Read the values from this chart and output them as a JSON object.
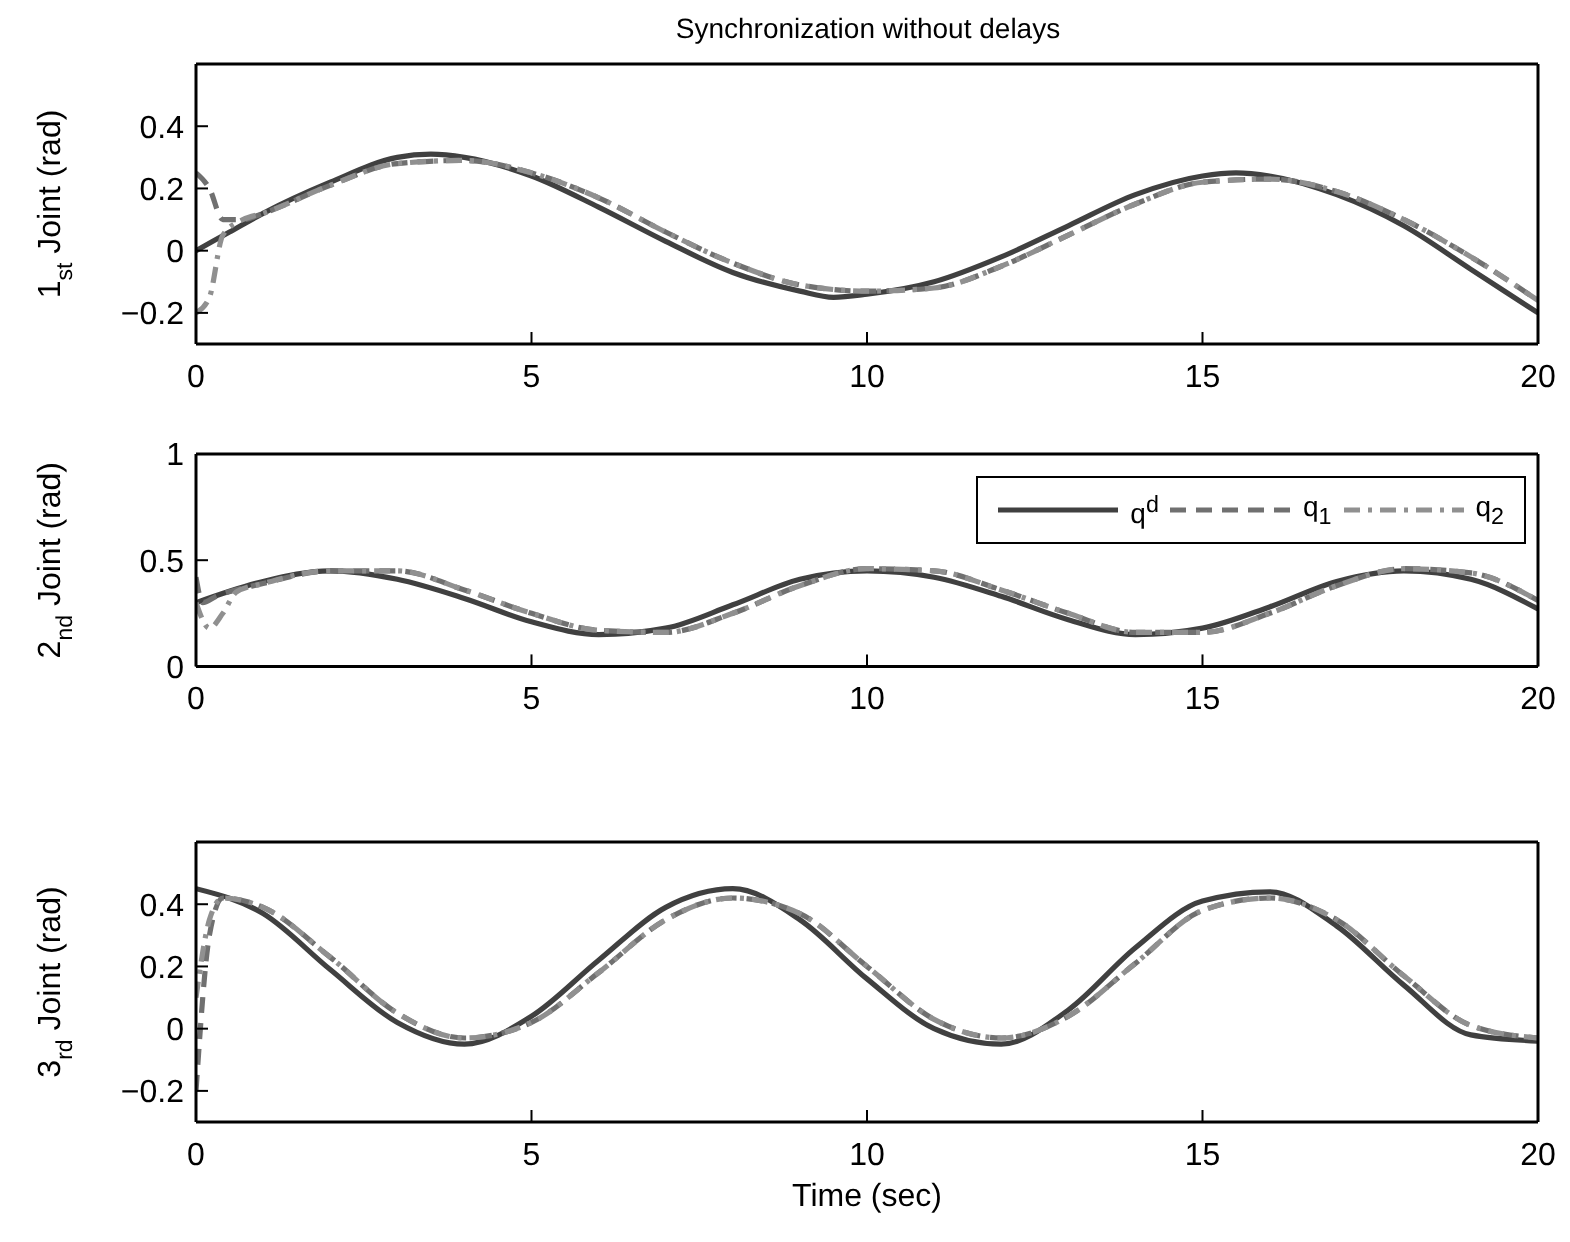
{
  "chart_data": [
    {
      "type": "line",
      "title": "Synchronization without delays",
      "ylabel": "1$_{st}$ Joint (rad)",
      "xlim": [
        0,
        20
      ],
      "xticks": [
        0,
        5,
        10,
        15,
        20
      ],
      "ylim": [
        -0.3,
        0.6
      ],
      "yticks": [
        -0.2,
        0,
        0.2,
        0.4
      ],
      "grid": false,
      "legend": false,
      "series": [
        {
          "color": "#404040",
          "line_style": "solid",
          "x": [
            0,
            0.5,
            1,
            2,
            3,
            3.5,
            4,
            5,
            6,
            7,
            8,
            9,
            9.5,
            10,
            11,
            12,
            13,
            14,
            15,
            15.5,
            16,
            17,
            18,
            19,
            20
          ],
          "values": [
            0,
            0.06,
            0.12,
            0.22,
            0.3,
            0.31,
            0.3,
            0.24,
            0.14,
            0.03,
            -0.07,
            -0.13,
            -0.15,
            -0.14,
            -0.1,
            -0.02,
            0.08,
            0.18,
            0.24,
            0.25,
            0.24,
            0.18,
            0.08,
            -0.06,
            -0.2
          ]
        },
        {
          "color": "#707070",
          "line_style": "dashed",
          "x": [
            0,
            0.2,
            0.4,
            0.7,
            1,
            2,
            3,
            4,
            5,
            6,
            7,
            8,
            9,
            10,
            11,
            12,
            13,
            14,
            15,
            16,
            17,
            18,
            19,
            20
          ],
          "values": [
            0.25,
            0.2,
            0.1,
            0.1,
            0.12,
            0.21,
            0.28,
            0.29,
            0.25,
            0.17,
            0.06,
            -0.04,
            -0.11,
            -0.13,
            -0.12,
            -0.05,
            0.05,
            0.15,
            0.22,
            0.23,
            0.19,
            0.1,
            -0.02,
            -0.16
          ]
        },
        {
          "color": "#909090",
          "line_style": "dashdot",
          "x": [
            0,
            0.2,
            0.4,
            0.7,
            1,
            2,
            3,
            4,
            5,
            6,
            7,
            8,
            9,
            10,
            11,
            12,
            13,
            14,
            15,
            16,
            17,
            18,
            19,
            20
          ],
          "values": [
            -0.2,
            -0.15,
            0.05,
            0.1,
            0.12,
            0.21,
            0.28,
            0.29,
            0.25,
            0.17,
            0.06,
            -0.04,
            -0.11,
            -0.13,
            -0.12,
            -0.05,
            0.05,
            0.15,
            0.22,
            0.23,
            0.19,
            0.1,
            -0.02,
            -0.16
          ]
        }
      ]
    },
    {
      "type": "line",
      "ylabel": "2$_{nd}$ Joint (rad)",
      "xlim": [
        0,
        20
      ],
      "xticks": [
        0,
        5,
        10,
        15,
        20
      ],
      "ylim": [
        0,
        1
      ],
      "yticks": [
        0,
        0.5,
        1
      ],
      "grid": false,
      "legend": "top right",
      "series": [
        {
          "name": "q$^{d}$",
          "color": "#404040",
          "line_style": "solid",
          "x": [
            0,
            1,
            2,
            3,
            4,
            5,
            6,
            7,
            8,
            9,
            10,
            11,
            12,
            13,
            14,
            15,
            16,
            17,
            18,
            19,
            20
          ],
          "values": [
            0.3,
            0.4,
            0.45,
            0.41,
            0.32,
            0.21,
            0.15,
            0.18,
            0.29,
            0.41,
            0.45,
            0.42,
            0.33,
            0.22,
            0.15,
            0.18,
            0.28,
            0.4,
            0.45,
            0.41,
            0.27
          ]
        },
        {
          "name": "q$_{1}$",
          "color": "#707070",
          "line_style": "dashed",
          "x": [
            0,
            0.1,
            0.3,
            1,
            2,
            3,
            4,
            5,
            6,
            7,
            8,
            9,
            10,
            11,
            12,
            13,
            14,
            15,
            16,
            17,
            18,
            19,
            20
          ],
          "values": [
            0.42,
            0.3,
            0.33,
            0.39,
            0.45,
            0.45,
            0.36,
            0.25,
            0.17,
            0.16,
            0.25,
            0.38,
            0.46,
            0.45,
            0.36,
            0.25,
            0.16,
            0.16,
            0.25,
            0.38,
            0.46,
            0.44,
            0.31
          ]
        },
        {
          "name": "q$_{2}$",
          "color": "#909090",
          "line_style": "dashdot",
          "x": [
            0,
            0.2,
            0.4,
            0.6,
            1,
            2,
            3,
            4,
            5,
            6,
            7,
            8,
            9,
            10,
            11,
            12,
            13,
            14,
            15,
            16,
            17,
            18,
            19,
            20
          ],
          "values": [
            0.3,
            0.18,
            0.25,
            0.35,
            0.39,
            0.45,
            0.45,
            0.36,
            0.25,
            0.17,
            0.16,
            0.25,
            0.38,
            0.46,
            0.45,
            0.36,
            0.25,
            0.16,
            0.16,
            0.25,
            0.38,
            0.46,
            0.44,
            0.31
          ]
        }
      ]
    },
    {
      "type": "line",
      "ylabel": "3$_{rd}$ Joint (rad)",
      "xlabel": "Time (sec)",
      "xlim": [
        0,
        20
      ],
      "xticks": [
        0,
        5,
        10,
        15,
        20
      ],
      "ylim": [
        -0.3,
        0.6
      ],
      "yticks": [
        -0.2,
        0,
        0.2,
        0.4
      ],
      "grid": false,
      "legend": false,
      "series": [
        {
          "color": "#404040",
          "line_style": "solid",
          "x": [
            0,
            1,
            2,
            3,
            4,
            5,
            6,
            7,
            8,
            9,
            10,
            11,
            12,
            13,
            14,
            15,
            16,
            17,
            18,
            19,
            20
          ],
          "values": [
            0.45,
            0.37,
            0.19,
            0.02,
            -0.05,
            0.04,
            0.22,
            0.39,
            0.45,
            0.35,
            0.16,
            0,
            -0.05,
            0.06,
            0.26,
            0.41,
            0.44,
            0.33,
            0.14,
            -0.02,
            -0.04
          ]
        },
        {
          "color": "#707070",
          "line_style": "dashed",
          "x": [
            0,
            0.2,
            0.4,
            1,
            2,
            3,
            4,
            5,
            6,
            7,
            8,
            9,
            10,
            11,
            12,
            13,
            14,
            15,
            16,
            17,
            18,
            19,
            20
          ],
          "values": [
            -0.2,
            0.3,
            0.42,
            0.39,
            0.23,
            0.05,
            -0.03,
            0.02,
            0.18,
            0.35,
            0.42,
            0.37,
            0.2,
            0.03,
            -0.03,
            0.04,
            0.21,
            0.38,
            0.42,
            0.35,
            0.17,
            0.01,
            -0.03
          ]
        },
        {
          "color": "#909090",
          "line_style": "dashdot",
          "x": [
            0,
            0.2,
            0.4,
            1,
            2,
            3,
            4,
            5,
            6,
            7,
            8,
            9,
            10,
            11,
            12,
            13,
            14,
            15,
            16,
            17,
            18,
            19,
            20
          ],
          "values": [
            0.1,
            0.35,
            0.42,
            0.39,
            0.23,
            0.05,
            -0.03,
            0.02,
            0.18,
            0.35,
            0.42,
            0.37,
            0.2,
            0.03,
            -0.03,
            0.04,
            0.21,
            0.38,
            0.42,
            0.35,
            0.17,
            0.01,
            -0.03
          ]
        }
      ]
    }
  ]
}
